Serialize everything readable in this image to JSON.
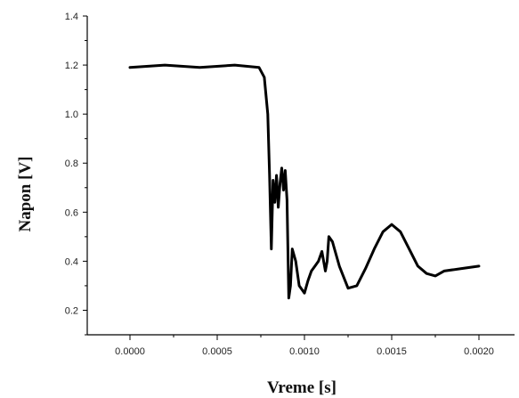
{
  "chart_data": {
    "type": "line",
    "title": "",
    "xlabel": "Vreme [s]",
    "ylabel": "Napon [V]",
    "xlim": [
      -0.0002,
      0.0022
    ],
    "ylim": [
      0.1,
      1.4
    ],
    "x_ticks": [
      0.0,
      0.0005,
      0.001,
      0.0015,
      0.002
    ],
    "x_tick_labels": [
      "0.0000",
      "0.0005",
      "0.0010",
      "0.0015",
      "0.0020"
    ],
    "y_ticks": [
      0.2,
      0.4,
      0.6,
      0.8,
      1.0,
      1.2,
      1.4
    ],
    "y_tick_labels": [
      "0.2",
      "0.4",
      "0.6",
      "0.8",
      "1.0",
      "1.2",
      "1.4"
    ],
    "grid": false,
    "legend": "none",
    "line_color": "#000000",
    "series": [
      {
        "x": [
          0.0,
          0.0002,
          0.0004,
          0.0006,
          0.00074,
          0.00077,
          0.00079,
          0.0008,
          0.00081,
          0.00082,
          0.00083,
          0.00084,
          0.00085,
          0.00086,
          0.00087,
          0.00088,
          0.00089,
          0.0009,
          0.00091,
          0.00092,
          0.00093,
          0.00095,
          0.00097,
          0.00099,
          0.001,
          0.00102,
          0.00104,
          0.00106,
          0.00108,
          0.0011,
          0.00112,
          0.00113,
          0.00114,
          0.00116,
          0.00118,
          0.0012,
          0.00125,
          0.0013,
          0.00135,
          0.0014,
          0.00145,
          0.0015,
          0.00155,
          0.0016,
          0.00165,
          0.0017,
          0.00175,
          0.0018,
          0.0019,
          0.002
        ],
        "y": [
          1.19,
          1.2,
          1.19,
          1.2,
          1.19,
          1.15,
          1.0,
          0.75,
          0.45,
          0.73,
          0.64,
          0.75,
          0.62,
          0.72,
          0.78,
          0.69,
          0.77,
          0.65,
          0.25,
          0.3,
          0.45,
          0.4,
          0.3,
          0.28,
          0.27,
          0.32,
          0.36,
          0.38,
          0.4,
          0.44,
          0.36,
          0.4,
          0.5,
          0.48,
          0.43,
          0.38,
          0.29,
          0.3,
          0.37,
          0.45,
          0.52,
          0.55,
          0.52,
          0.45,
          0.38,
          0.35,
          0.34,
          0.36,
          0.37,
          0.38
        ]
      }
    ]
  }
}
